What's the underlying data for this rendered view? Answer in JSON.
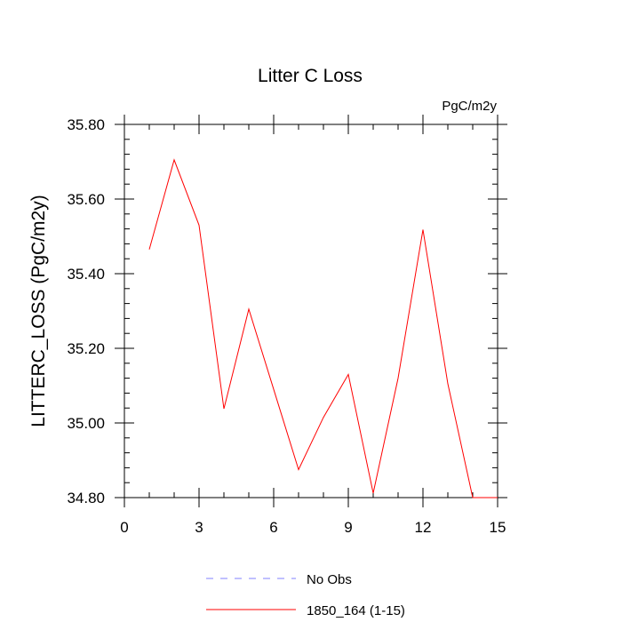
{
  "chart_data": {
    "type": "line",
    "title": "Litter C Loss",
    "units_label": "PgC/m2y",
    "xlabel": "",
    "ylabel": "LITTERC_LOSS  (PgC/m2y)",
    "xlim": [
      0,
      15
    ],
    "ylim": [
      34.8,
      35.8
    ],
    "x_ticks": [
      0,
      3,
      6,
      9,
      12,
      15
    ],
    "x_tick_labels": [
      "0",
      "3",
      "6",
      "9",
      "12",
      "15"
    ],
    "y_ticks": [
      34.8,
      35.0,
      35.2,
      35.4,
      35.6,
      35.8
    ],
    "y_tick_labels": [
      "34.80",
      "35.00",
      "35.20",
      "35.40",
      "35.60",
      "35.80"
    ],
    "grid": false,
    "legend_position": "bottom",
    "series": [
      {
        "name": "No Obs",
        "color": "#8080ff",
        "dash": true,
        "x": [],
        "values": []
      },
      {
        "name": "1850_164 (1-15)",
        "color": "#ff0000",
        "dash": false,
        "x": [
          1,
          2,
          3,
          4,
          5,
          6,
          7,
          8,
          9,
          10,
          11,
          12,
          13,
          14,
          15
        ],
        "values": [
          35.465,
          35.705,
          35.53,
          35.038,
          35.305,
          35.09,
          34.875,
          35.015,
          35.13,
          34.812,
          35.12,
          35.518,
          35.105,
          34.8,
          34.8
        ]
      }
    ]
  }
}
